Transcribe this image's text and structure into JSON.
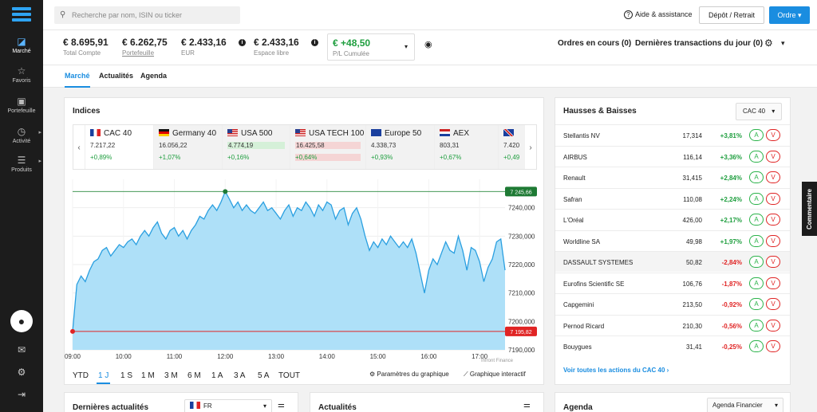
{
  "sidebar": {
    "items": [
      {
        "label": "Marché",
        "icon": "chart-icon",
        "glyph": "◪"
      },
      {
        "label": "Favoris",
        "icon": "star-icon",
        "glyph": "☆"
      },
      {
        "label": "Portefeuille",
        "icon": "wallet-icon",
        "glyph": "▣"
      },
      {
        "label": "Activité",
        "icon": "clock-icon",
        "glyph": "◷"
      },
      {
        "label": "Produits",
        "icon": "products-icon",
        "glyph": "☰"
      }
    ]
  },
  "header": {
    "search_placeholder": "Recherche par nom, ISIN ou ticker",
    "help_label": "Aide & assistance",
    "deposit_label": "Dépôt / Retrait",
    "order_label": "Ordre"
  },
  "account": {
    "total": {
      "value": "€ 8.695,91",
      "label": "Total Compte"
    },
    "portfolio": {
      "value": "€ 6.262,75",
      "label": "Portefeuille"
    },
    "eur": {
      "value": "€ 2.433,16",
      "label": "EUR"
    },
    "free": {
      "value": "€ 2.433,16",
      "label": "Espace libre"
    },
    "pl": {
      "value": "€ +48,50",
      "label": "P/L Cumulée"
    },
    "open_orders": "Ordres en cours (0)",
    "last_tx": "Dernières transactions du jour (0)"
  },
  "tabs": [
    "Marché",
    "Actualités",
    "Agenda"
  ],
  "indices": {
    "title": "Indices",
    "items": [
      {
        "name": "CAC 40",
        "price": "7.217,22",
        "change": "+0,89%",
        "flag": "fr"
      },
      {
        "name": "Germany 40",
        "price": "16.056,22",
        "change": "+1,07%",
        "flag": "de"
      },
      {
        "name": "USA 500",
        "price": "4.774,19",
        "change": "+0,16%",
        "flag": "us"
      },
      {
        "name": "USA TECH 100",
        "price": "16.425,58",
        "change": "+0,64%",
        "flag": "us"
      },
      {
        "name": "Europe 50",
        "price": "4.338,73",
        "change": "+0,93%",
        "flag": "eu"
      },
      {
        "name": "AEX",
        "price": "803,31",
        "change": "+0,67%",
        "flag": "nl"
      },
      {
        "name": "",
        "price": "7.420",
        "change": "+0,49",
        "flag": "uk"
      }
    ]
  },
  "chart_data": {
    "type": "area",
    "x": [
      "09:00",
      "09:05",
      "09:10",
      "09:15",
      "09:20",
      "09:25",
      "09:30",
      "09:35",
      "09:40",
      "09:45",
      "09:50",
      "09:55",
      "10:00",
      "10:05",
      "10:10",
      "10:15",
      "10:20",
      "10:25",
      "10:30",
      "10:35",
      "10:40",
      "10:45",
      "10:50",
      "10:55",
      "11:00",
      "11:05",
      "11:10",
      "11:15",
      "11:20",
      "11:25",
      "11:30",
      "11:35",
      "11:40",
      "11:45",
      "11:50",
      "11:55",
      "12:00",
      "12:05",
      "12:10",
      "12:15",
      "12:20",
      "12:25",
      "12:30",
      "12:35",
      "12:40",
      "12:45",
      "12:50",
      "12:55",
      "13:00",
      "13:05",
      "13:10",
      "13:15",
      "13:20",
      "13:25",
      "13:30",
      "13:35",
      "13:40",
      "13:45",
      "13:50",
      "13:55",
      "14:00",
      "14:05",
      "14:10",
      "14:15",
      "14:20",
      "14:25",
      "14:30",
      "14:35",
      "14:40",
      "14:45",
      "14:50",
      "14:55",
      "15:00",
      "15:05",
      "15:10",
      "15:15",
      "15:20",
      "15:25",
      "15:30",
      "15:35",
      "15:40",
      "15:45",
      "15:50",
      "15:55",
      "16:00",
      "16:05",
      "16:10",
      "16:15",
      "16:20",
      "16:25",
      "16:30",
      "16:35",
      "16:40",
      "16:45",
      "16:50",
      "16:55",
      "17:00",
      "17:05",
      "17:10",
      "17:15",
      "17:20",
      "17:25",
      "17:30"
    ],
    "y": [
      7196.5,
      7213,
      7216,
      7214,
      7218,
      7221,
      7222,
      7225,
      7226,
      7223,
      7225,
      7227,
      7226,
      7228,
      7229,
      7227,
      7230,
      7232,
      7230,
      7233,
      7235,
      7231,
      7229,
      7232,
      7233,
      7230,
      7232,
      7229,
      7232,
      7234,
      7237,
      7236,
      7239,
      7241,
      7239,
      7242,
      7245.7,
      7243,
      7240,
      7242,
      7239,
      7241,
      7239,
      7238,
      7240,
      7242,
      7239,
      7240,
      7238,
      7236,
      7239,
      7241,
      7237,
      7240,
      7239,
      7242,
      7240,
      7237,
      7241,
      7239,
      7242,
      7241,
      7236,
      7239,
      7240,
      7234,
      7238,
      7240,
      7236,
      7230,
      7225,
      7228,
      7226,
      7229,
      7227,
      7230,
      7228,
      7226,
      7228,
      7226,
      7229,
      7224,
      7217,
      7210,
      7218,
      7222,
      7220,
      7224,
      7228,
      7225,
      7224,
      7230,
      7225,
      7218,
      7226,
      7225,
      7221,
      7214,
      7219,
      7222,
      7228,
      7229,
      7218
    ],
    "high": "7 245,66",
    "low": "7 195,82",
    "ylim": [
      7190,
      7250
    ],
    "yticks": [
      "7240,000",
      "7230,000",
      "7220,000",
      "7210,000",
      "7200,000",
      "7190,000"
    ],
    "xticks": [
      "09:00",
      "10:00",
      "11:00",
      "12:00",
      "13:00",
      "14:00",
      "15:00",
      "16:00",
      "17:00"
    ],
    "source": "Infront Finance",
    "fill": "#aee0f8",
    "line": "#2a9fe0"
  },
  "periods": [
    "YTD",
    "1 J",
    "1 S",
    "1 M",
    "3 M",
    "6 M",
    "1 A",
    "3 A",
    "5 A",
    "TOUT"
  ],
  "chart_options": [
    "Paramètres du graphique",
    "Graphique interactif"
  ],
  "movers": {
    "title": "Hausses & Baisses",
    "selector": "CAC 40",
    "rows": [
      {
        "name": "Stellantis NV",
        "price": "17,314",
        "change": "+3,81%"
      },
      {
        "name": "AIRBUS",
        "price": "116,14",
        "change": "+3,36%"
      },
      {
        "name": "Renault",
        "price": "31,415",
        "change": "+2,84%"
      },
      {
        "name": "Safran",
        "price": "110,08",
        "change": "+2,24%"
      },
      {
        "name": "L'Oréal",
        "price": "426,00",
        "change": "+2,17%"
      },
      {
        "name": "Worldline SA",
        "price": "49,98",
        "change": "+1,97%"
      },
      {
        "name": "DASSAULT SYSTEMES",
        "price": "50,82",
        "change": "-2,84%"
      },
      {
        "name": "Eurofins Scientific SE",
        "price": "106,76",
        "change": "-1,87%"
      },
      {
        "name": "Capgemini",
        "price": "213,50",
        "change": "-0,92%"
      },
      {
        "name": "Pernod Ricard",
        "price": "210,30",
        "change": "-0,56%"
      },
      {
        "name": "Bouygues",
        "price": "31,41",
        "change": "-0,25%"
      }
    ],
    "buy": "A",
    "sell": "V",
    "see_all": "Voir toutes les actions du CAC 40"
  },
  "bottom": {
    "news_latest": "Dernières actualités",
    "news_lang": "FR",
    "news": "Actualités",
    "agenda": "Agenda",
    "agenda_select": "Agenda Financier"
  },
  "comment_label": "Commentaire"
}
